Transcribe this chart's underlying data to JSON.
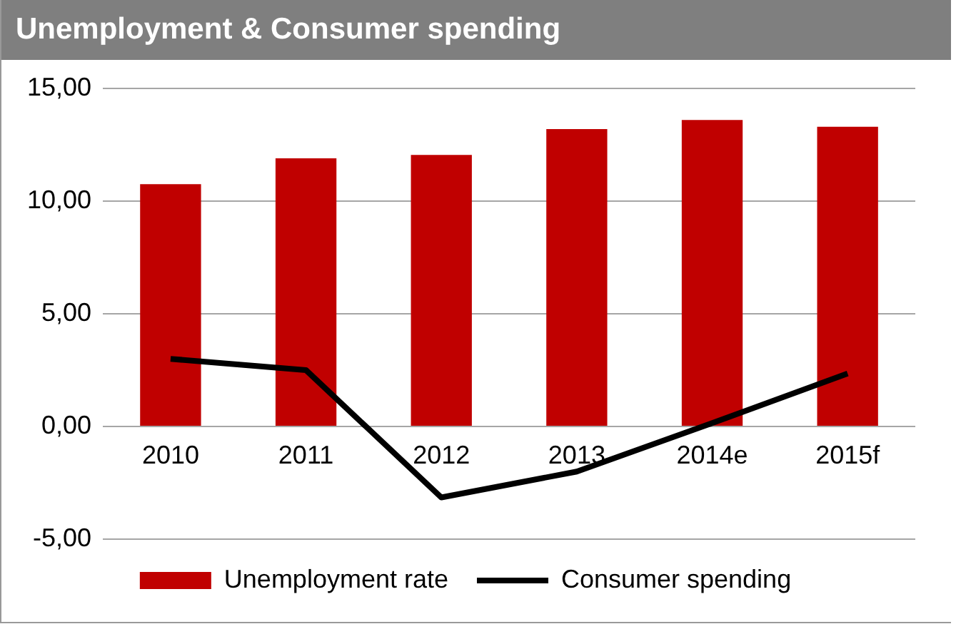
{
  "chart_data": {
    "type": "bar",
    "title": "Unemployment & Consumer spending",
    "categories": [
      "2010",
      "2011",
      "2012",
      "2013",
      "2014e",
      "2015f"
    ],
    "series": [
      {
        "name": "Unemployment rate",
        "color": "#c00000",
        "values": [
          10.75,
          11.9,
          12.05,
          13.2,
          13.6,
          13.3
        ]
      },
      {
        "name": "Consumer spending",
        "type": "line",
        "color": "#000000",
        "values": [
          3.0,
          2.5,
          -3.15,
          -2.0,
          0.15,
          2.35
        ]
      }
    ],
    "ylim": [
      -5,
      15
    ],
    "yticks": [
      {
        "value": -5,
        "label": "-5,00"
      },
      {
        "value": 0,
        "label": "0,00"
      },
      {
        "value": 5,
        "label": "5,00"
      },
      {
        "value": 10,
        "label": "10,00"
      },
      {
        "value": 15,
        "label": "15,00"
      }
    ],
    "grid": "y",
    "legend": "bottom",
    "marker": "none"
  }
}
